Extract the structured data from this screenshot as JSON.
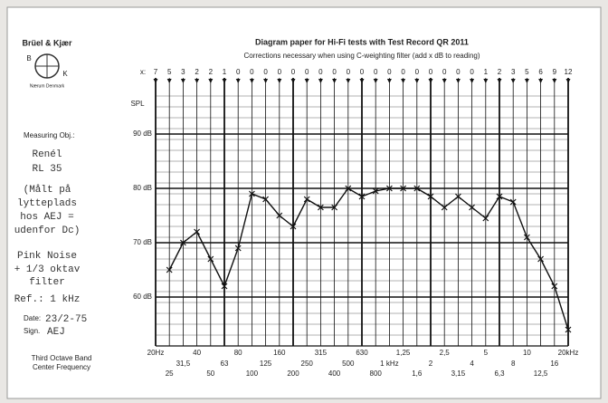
{
  "header": {
    "brand": "Brüel & Kjær",
    "logo_left": "B",
    "logo_right": "K",
    "location": "Nærum Denmark"
  },
  "form": {
    "measuring_label": "Measuring Obj.:",
    "object_lines": [
      "Renél",
      "RL 35"
    ],
    "note_lines": [
      "(Målt på",
      "lytteplads",
      "hos AEJ =",
      "udenfor Dc)"
    ],
    "signal_lines": [
      "Pink Noise",
      "+ 1/3 oktav",
      "filter"
    ],
    "ref": "Ref.: 1 kHz",
    "date_label": "Date:",
    "date": "23/2-75",
    "sign_label": "Sign.",
    "sign": "AEJ",
    "axis_caption_lines": [
      "Third Octave Band",
      "Center Frequency"
    ]
  },
  "chart_data": {
    "type": "line",
    "title": "Diagram paper for Hi-Fi tests with Test Record QR 2011",
    "subtitle": "Corrections necessary when using C-weighting filter (add x dB to reading)",
    "corrections_label": "x:",
    "y_label": "SPL",
    "categories": [
      "20Hz",
      "25",
      "31,5",
      "40",
      "50",
      "63",
      "80",
      "100",
      "125",
      "160",
      "200",
      "250",
      "315",
      "400",
      "500",
      "630",
      "800",
      "1 kHz",
      "1,25",
      "1,6",
      "2",
      "2,5",
      "3,15",
      "4",
      "5",
      "6,3",
      "8",
      "10",
      "12,5",
      "16",
      "20kHz"
    ],
    "corrections": [
      7,
      5,
      3,
      2,
      2,
      1,
      0,
      0,
      0,
      0,
      0,
      0,
      0,
      0,
      0,
      0,
      0,
      0,
      0,
      0,
      0,
      0,
      0,
      0,
      1,
      2,
      3,
      5,
      6,
      9,
      12
    ],
    "values": [
      null,
      65,
      70,
      72,
      67,
      62,
      69,
      79,
      78,
      75,
      73,
      78,
      76.5,
      76.5,
      80,
      78.5,
      79.5,
      80,
      80,
      80,
      78.5,
      76.5,
      78.5,
      76.5,
      74.5,
      78.5,
      77.5,
      71,
      67,
      62,
      54
    ],
    "color": "#111111",
    "ylim": [
      51,
      98
    ],
    "yticks": [
      {
        "value": 60,
        "label": "60 dB"
      },
      {
        "value": 70,
        "label": "70 dB"
      },
      {
        "value": 80,
        "label": "80 dB"
      },
      {
        "value": 90,
        "label": "90 dB"
      }
    ],
    "grid": true
  }
}
